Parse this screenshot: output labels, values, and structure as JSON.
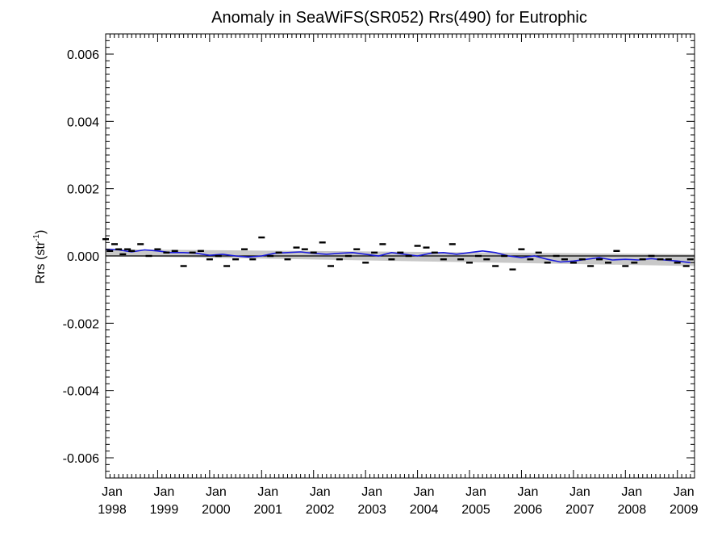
{
  "chart_data": {
    "type": "scatter",
    "title": "Anomaly in SeaWiFS(SR052) Rrs(490) for Eutrophic",
    "ylabel": {
      "main": "Rrs (str",
      "sup": "-1",
      "close": ")"
    },
    "xlabel": "",
    "xlim": [
      1998.0,
      2009.33
    ],
    "ylim": [
      -0.0066,
      0.0066
    ],
    "y_ticks": [
      {
        "value": -0.006,
        "label": "-0.006"
      },
      {
        "value": -0.004,
        "label": "-0.004"
      },
      {
        "value": -0.002,
        "label": "-0.002"
      },
      {
        "value": 0.0,
        "label": "0.000"
      },
      {
        "value": 0.002,
        "label": "0.002"
      },
      {
        "value": 0.004,
        "label": "0.004"
      },
      {
        "value": 0.006,
        "label": "0.006"
      }
    ],
    "x_ticks": [
      {
        "value": 1998,
        "month": "Jan",
        "year": "1998"
      },
      {
        "value": 1999,
        "month": "Jan",
        "year": "1999"
      },
      {
        "value": 2000,
        "month": "Jan",
        "year": "2000"
      },
      {
        "value": 2001,
        "month": "Jan",
        "year": "2001"
      },
      {
        "value": 2002,
        "month": "Jan",
        "year": "2002"
      },
      {
        "value": 2003,
        "month": "Jan",
        "year": "2003"
      },
      {
        "value": 2004,
        "month": "Jan",
        "year": "2004"
      },
      {
        "value": 2005,
        "month": "Jan",
        "year": "2005"
      },
      {
        "value": 2006,
        "month": "Jan",
        "year": "2006"
      },
      {
        "value": 2007,
        "month": "Jan",
        "year": "2007"
      },
      {
        "value": 2008,
        "month": "Jan",
        "year": "2008"
      },
      {
        "value": 2009,
        "month": "Jan",
        "year": "2009"
      }
    ],
    "x_minor_per_year": 12,
    "y_minor_step": 0.0002,
    "grid": false,
    "colors": {
      "points": "#000000",
      "smooth": "#1a1adb",
      "band": "#c8c8c8",
      "zero_line": "#000000"
    },
    "monthly_anomaly": {
      "x": [
        1998.0,
        1998.08,
        1998.17,
        1998.25,
        1998.33,
        1998.42,
        1998.5,
        1998.67,
        1998.83,
        1999.0,
        1999.17,
        1999.33,
        1999.5,
        1999.67,
        1999.83,
        2000.0,
        2000.17,
        2000.33,
        2000.5,
        2000.67,
        2000.83,
        2001.0,
        2001.17,
        2001.33,
        2001.5,
        2001.67,
        2001.83,
        2002.0,
        2002.17,
        2002.33,
        2002.5,
        2002.67,
        2002.83,
        2003.0,
        2003.17,
        2003.33,
        2003.5,
        2003.67,
        2003.83,
        2004.0,
        2004.17,
        2004.33,
        2004.5,
        2004.67,
        2004.83,
        2005.0,
        2005.17,
        2005.33,
        2005.5,
        2005.67,
        2005.83,
        2006.0,
        2006.17,
        2006.33,
        2006.5,
        2006.67,
        2006.83,
        2007.0,
        2007.17,
        2007.33,
        2007.5,
        2007.67,
        2007.83,
        2008.0,
        2008.17,
        2008.33,
        2008.5,
        2008.67,
        2008.83,
        2009.0,
        2009.17,
        2009.25
      ],
      "y": [
        0.0005,
        0.00015,
        0.00035,
        0.0002,
        5e-05,
        0.0002,
        0.00015,
        0.00035,
        0.0,
        0.0002,
        0.0001,
        0.00015,
        -0.0003,
        0.0001,
        0.00015,
        -0.0001,
        0.0,
        -0.0003,
        -0.0001,
        0.0002,
        -0.0001,
        0.00055,
        0.0,
        0.0001,
        -0.0001,
        0.00025,
        0.0002,
        0.0001,
        0.0004,
        -0.0003,
        -0.0001,
        0.0,
        0.0002,
        -0.0002,
        0.0001,
        0.00035,
        -0.0001,
        0.0001,
        0.0,
        0.0003,
        0.00025,
        0.0001,
        -0.0001,
        0.00035,
        -0.0001,
        -0.0002,
        0.0,
        -0.0001,
        -0.0003,
        0.0,
        -0.0004,
        0.0002,
        -0.0001,
        0.0001,
        -0.0002,
        0.0,
        -0.0001,
        -0.0002,
        -0.0001,
        -0.0003,
        -0.0001,
        -0.0002,
        0.00015,
        -0.0003,
        -0.0002,
        -0.0001,
        0.0,
        -0.0001,
        -0.0001,
        -0.0002,
        -0.0003,
        -0.0001
      ]
    },
    "smoothed_anomaly": {
      "x": [
        1998.0,
        1998.25,
        1998.5,
        1998.75,
        1999.0,
        1999.25,
        1999.5,
        1999.75,
        2000.0,
        2000.25,
        2000.5,
        2000.75,
        2001.0,
        2001.25,
        2001.5,
        2001.75,
        2002.0,
        2002.25,
        2002.5,
        2002.75,
        2003.0,
        2003.25,
        2003.5,
        2003.75,
        2004.0,
        2004.25,
        2004.5,
        2004.75,
        2005.0,
        2005.25,
        2005.5,
        2005.75,
        2006.0,
        2006.25,
        2006.5,
        2006.75,
        2007.0,
        2007.25,
        2007.5,
        2007.75,
        2008.0,
        2008.25,
        2008.5,
        2008.75,
        2009.0,
        2009.25
      ],
      "y": [
        0.0002,
        0.00018,
        0.00012,
        0.00018,
        0.00015,
        0.0001,
        0.0001,
        8e-05,
        2e-05,
        5e-05,
        0.0,
        -3e-05,
        0.0,
        8e-05,
        0.0001,
        0.00012,
        8e-05,
        5e-05,
        8e-05,
        0.0001,
        5e-05,
        0.0,
        0.0001,
        5e-05,
        0.0,
        8e-05,
        0.0001,
        5e-05,
        0.0001,
        0.00015,
        0.0001,
        0.0,
        -5e-05,
        0.0,
        -0.0001,
        -0.00018,
        -0.00015,
        -0.0001,
        -5e-05,
        -0.00012,
        -0.0001,
        -0.00012,
        -8e-05,
        -0.00012,
        -0.00015,
        -0.0002
      ]
    },
    "trend_band": {
      "x": [
        1998.0,
        2009.33
      ],
      "upper": [
        0.0002,
        5e-05
      ],
      "lower": [
        0.0,
        -0.0003
      ]
    }
  }
}
